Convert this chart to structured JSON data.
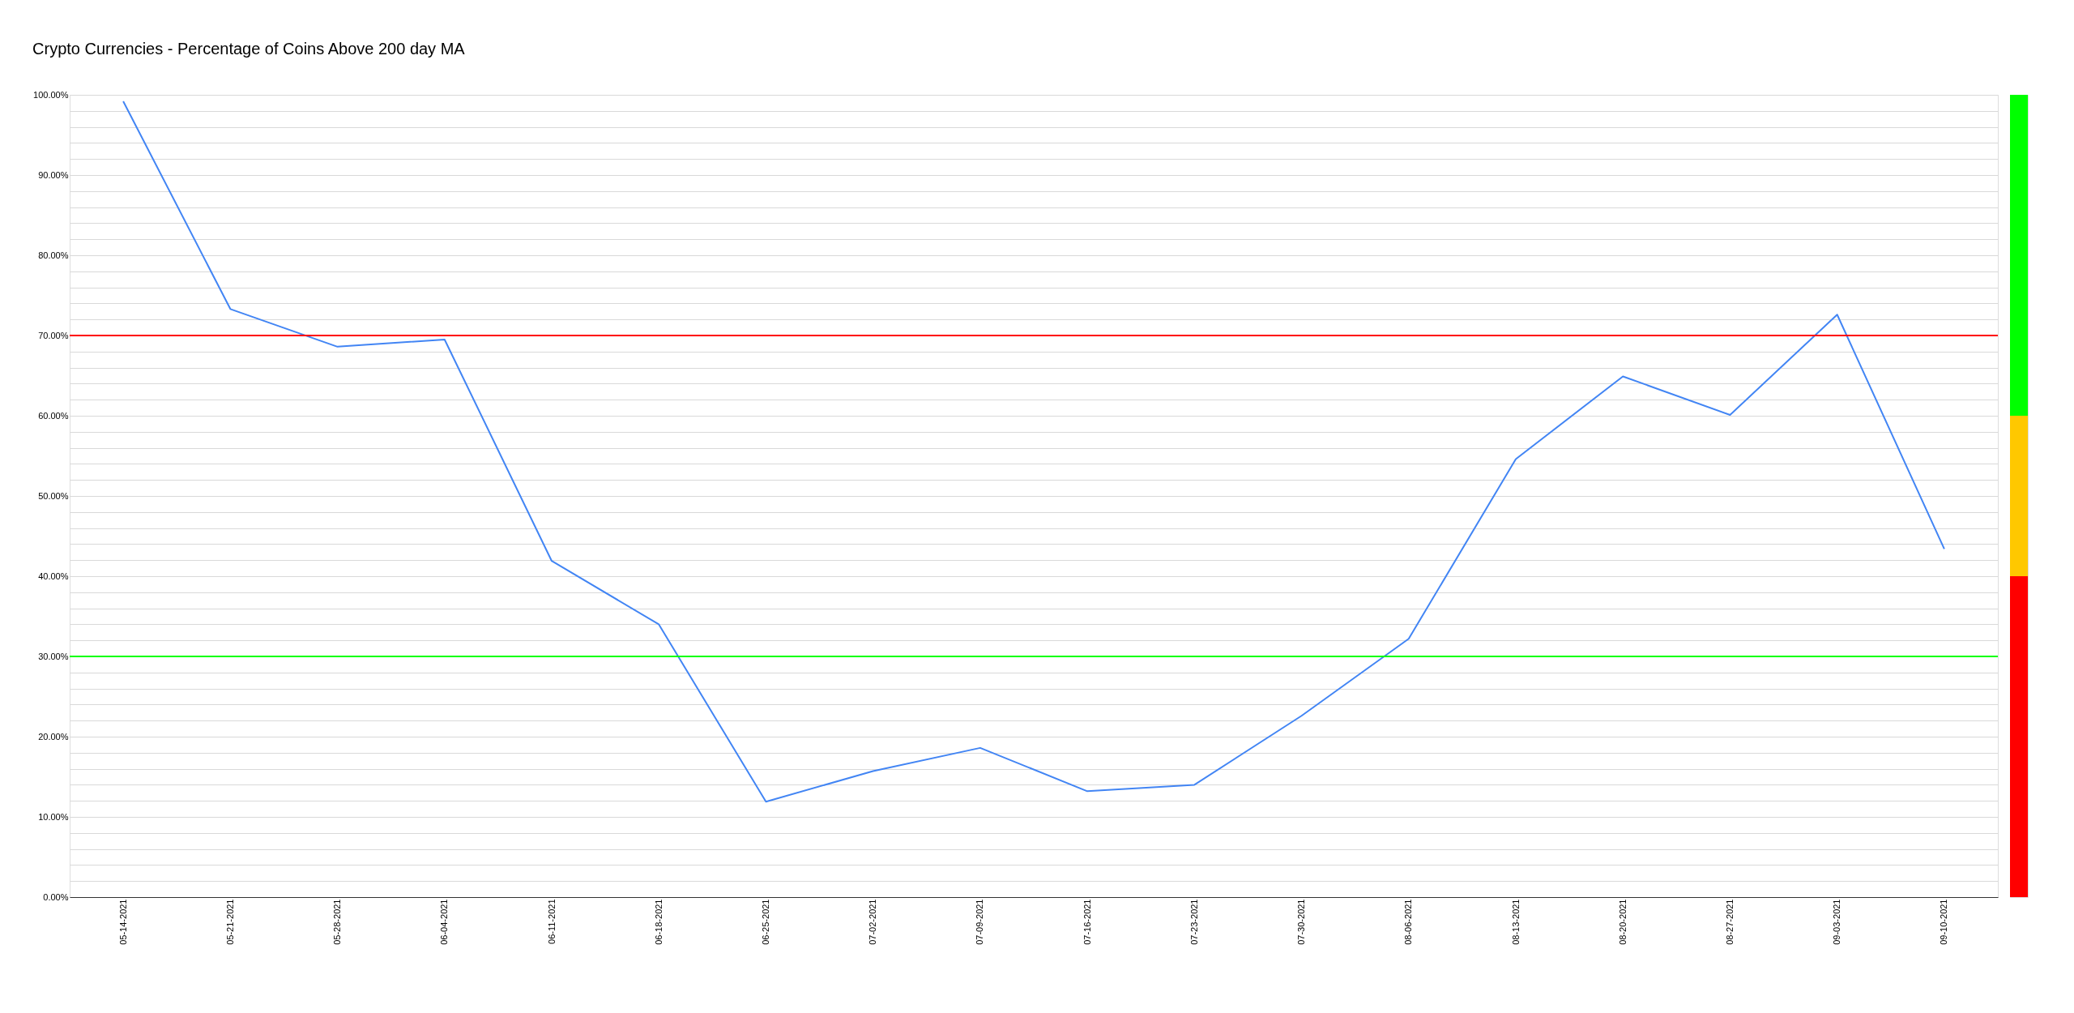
{
  "chart_data": [
    {
      "type": "line",
      "title": "Crypto Currencies - Percentage of Coins Above 200 day MA",
      "categories": [
        "05-14-2021",
        "05-21-2021",
        "05-28-2021",
        "06-04-2021",
        "06-11-2021",
        "06-18-2021",
        "06-25-2021",
        "07-02-2021",
        "07-09-2021",
        "07-16-2021",
        "07-23-2021",
        "07-30-2021",
        "08-06-2021",
        "08-13-2021",
        "08-20-2021",
        "08-27-2021",
        "09-03-2021",
        "09-10-2021"
      ],
      "series": [
        {
          "color": "#4285f4",
          "values": [
            99.2,
            73.3,
            68.6,
            69.5,
            41.9,
            34.0,
            11.9,
            15.7,
            18.6,
            13.2,
            14.0,
            22.6,
            32.2,
            54.6,
            64.9,
            60.1,
            72.6,
            43.4
          ]
        }
      ],
      "ylim": [
        0,
        100
      ],
      "yticks": [
        {
          "value": 0,
          "label": "0.00%"
        },
        {
          "value": 2,
          "label": null
        },
        {
          "value": 4,
          "label": null
        },
        {
          "value": 6,
          "label": null
        },
        {
          "value": 8,
          "label": null
        },
        {
          "value": 10,
          "label": "10.00%"
        },
        {
          "value": 12,
          "label": null
        },
        {
          "value": 14,
          "label": null
        },
        {
          "value": 16,
          "label": null
        },
        {
          "value": 18,
          "label": null
        },
        {
          "value": 20,
          "label": "20.00%"
        },
        {
          "value": 22,
          "label": null
        },
        {
          "value": 24,
          "label": null
        },
        {
          "value": 26,
          "label": null
        },
        {
          "value": 28,
          "label": null
        },
        {
          "value": 30,
          "label": "30.00%"
        },
        {
          "value": 32,
          "label": null
        },
        {
          "value": 34,
          "label": null
        },
        {
          "value": 36,
          "label": null
        },
        {
          "value": 38,
          "label": null
        },
        {
          "value": 40,
          "label": "40.00%"
        },
        {
          "value": 42,
          "label": null
        },
        {
          "value": 44,
          "label": null
        },
        {
          "value": 46,
          "label": null
        },
        {
          "value": 48,
          "label": null
        },
        {
          "value": 50,
          "label": "50.00%"
        },
        {
          "value": 52,
          "label": null
        },
        {
          "value": 54,
          "label": null
        },
        {
          "value": 56,
          "label": null
        },
        {
          "value": 58,
          "label": null
        },
        {
          "value": 60,
          "label": "60.00%"
        },
        {
          "value": 62,
          "label": null
        },
        {
          "value": 64,
          "label": null
        },
        {
          "value": 66,
          "label": null
        },
        {
          "value": 68,
          "label": null
        },
        {
          "value": 70,
          "label": "70.00%"
        },
        {
          "value": 72,
          "label": null
        },
        {
          "value": 74,
          "label": null
        },
        {
          "value": 76,
          "label": null
        },
        {
          "value": 78,
          "label": null
        },
        {
          "value": 80,
          "label": "80.00%"
        },
        {
          "value": 82,
          "label": null
        },
        {
          "value": 84,
          "label": null
        },
        {
          "value": 86,
          "label": null
        },
        {
          "value": 88,
          "label": null
        },
        {
          "value": 90,
          "label": "90.00%"
        },
        {
          "value": 92,
          "label": null
        },
        {
          "value": 94,
          "label": null
        },
        {
          "value": 96,
          "label": null
        },
        {
          "value": 98,
          "label": null
        },
        {
          "value": 100,
          "label": "100.00%"
        }
      ],
      "grid": "y",
      "marker": "none",
      "line_style": "solid",
      "ref_lines": [
        {
          "axis": "y",
          "value": 70,
          "color": "#ff0000"
        },
        {
          "axis": "y",
          "value": 30,
          "color": "#00ff00"
        }
      ]
    },
    {
      "type": "bar",
      "stacked": true,
      "categories": [
        null
      ],
      "ylim": [
        0,
        100
      ],
      "tick_labels": false,
      "series": [
        {
          "color": "#ff0000",
          "values": [
            40
          ]
        },
        {
          "color": "#ffc800",
          "values": [
            20
          ]
        },
        {
          "color": "#00ff00",
          "values": [
            40
          ]
        }
      ]
    }
  ]
}
